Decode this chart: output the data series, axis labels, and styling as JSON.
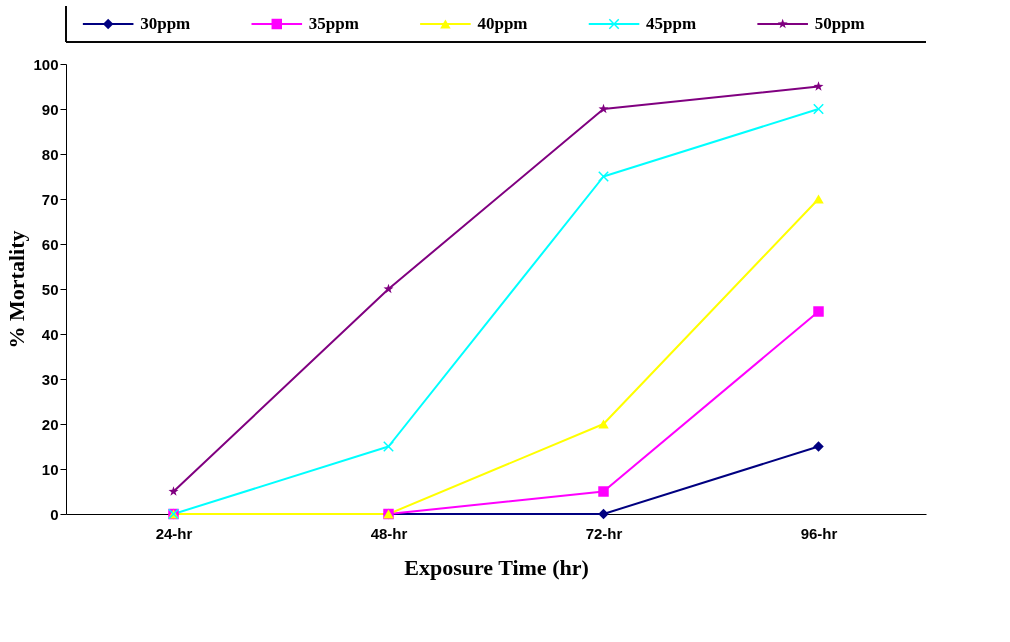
{
  "chart_data": {
    "type": "line",
    "xlabel": "Exposure Time (hr)",
    "ylabel": "% Mortality",
    "categories": [
      "24-hr",
      "48-hr",
      "72-hr",
      "96-hr"
    ],
    "series": [
      {
        "name": "30ppm",
        "color": "#000080",
        "marker": "diamond",
        "values": [
          0,
          0,
          0,
          15
        ]
      },
      {
        "name": "35ppm",
        "color": "#ff00ff",
        "marker": "square",
        "values": [
          0,
          0,
          5,
          45
        ]
      },
      {
        "name": "40ppm",
        "color": "#ffff00",
        "marker": "triangle",
        "values": [
          0,
          0,
          20,
          70
        ]
      },
      {
        "name": "45ppm",
        "color": "#00ffff",
        "marker": "cross",
        "values": [
          0,
          15,
          75,
          90
        ]
      },
      {
        "name": "50ppm",
        "color": "#800080",
        "marker": "star",
        "values": [
          5,
          50,
          90,
          95
        ]
      }
    ],
    "ylim": [
      0,
      100
    ],
    "yticks": [
      0,
      10,
      20,
      30,
      40,
      50,
      60,
      70,
      80,
      90,
      100
    ],
    "grid": false,
    "legend": "top",
    "line_style": "solid"
  }
}
